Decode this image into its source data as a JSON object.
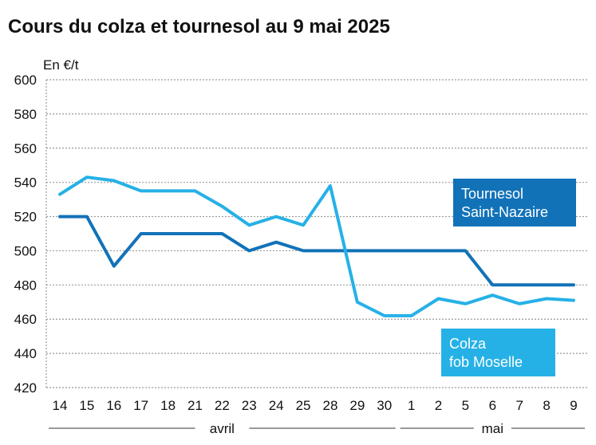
{
  "chart_data": {
    "type": "line",
    "title": "Cours du colza et tournesol au 9 mai 2025",
    "ylabel": "En €/t",
    "ylim": [
      420,
      600
    ],
    "yticks": [
      420,
      440,
      460,
      480,
      500,
      520,
      540,
      560,
      580,
      600
    ],
    "grid": true,
    "categories": [
      "14",
      "15",
      "16",
      "17",
      "18",
      "21",
      "22",
      "23",
      "24",
      "25",
      "28",
      "29",
      "30",
      "1",
      "2",
      "5",
      "6",
      "7",
      "8",
      "9"
    ],
    "months": [
      {
        "label": "avril",
        "from": 0,
        "to": 12
      },
      {
        "label": "mai",
        "from": 13,
        "to": 19
      }
    ],
    "series": [
      {
        "name_lines": [
          "Tournesol",
          "Saint-Nazaire"
        ],
        "color": "#1272b8",
        "values": [
          520,
          520,
          491,
          510,
          510,
          510,
          510,
          500,
          505,
          500,
          500,
          500,
          500,
          500,
          500,
          500,
          480,
          480,
          480,
          480
        ]
      },
      {
        "name_lines": [
          "Colza",
          "fob Moselle"
        ],
        "color": "#26b1e6",
        "values": [
          533,
          543,
          541,
          535,
          535,
          535,
          526,
          515,
          520,
          515,
          538,
          470,
          462,
          462,
          472,
          469,
          474,
          469,
          472,
          471
        ]
      }
    ]
  }
}
